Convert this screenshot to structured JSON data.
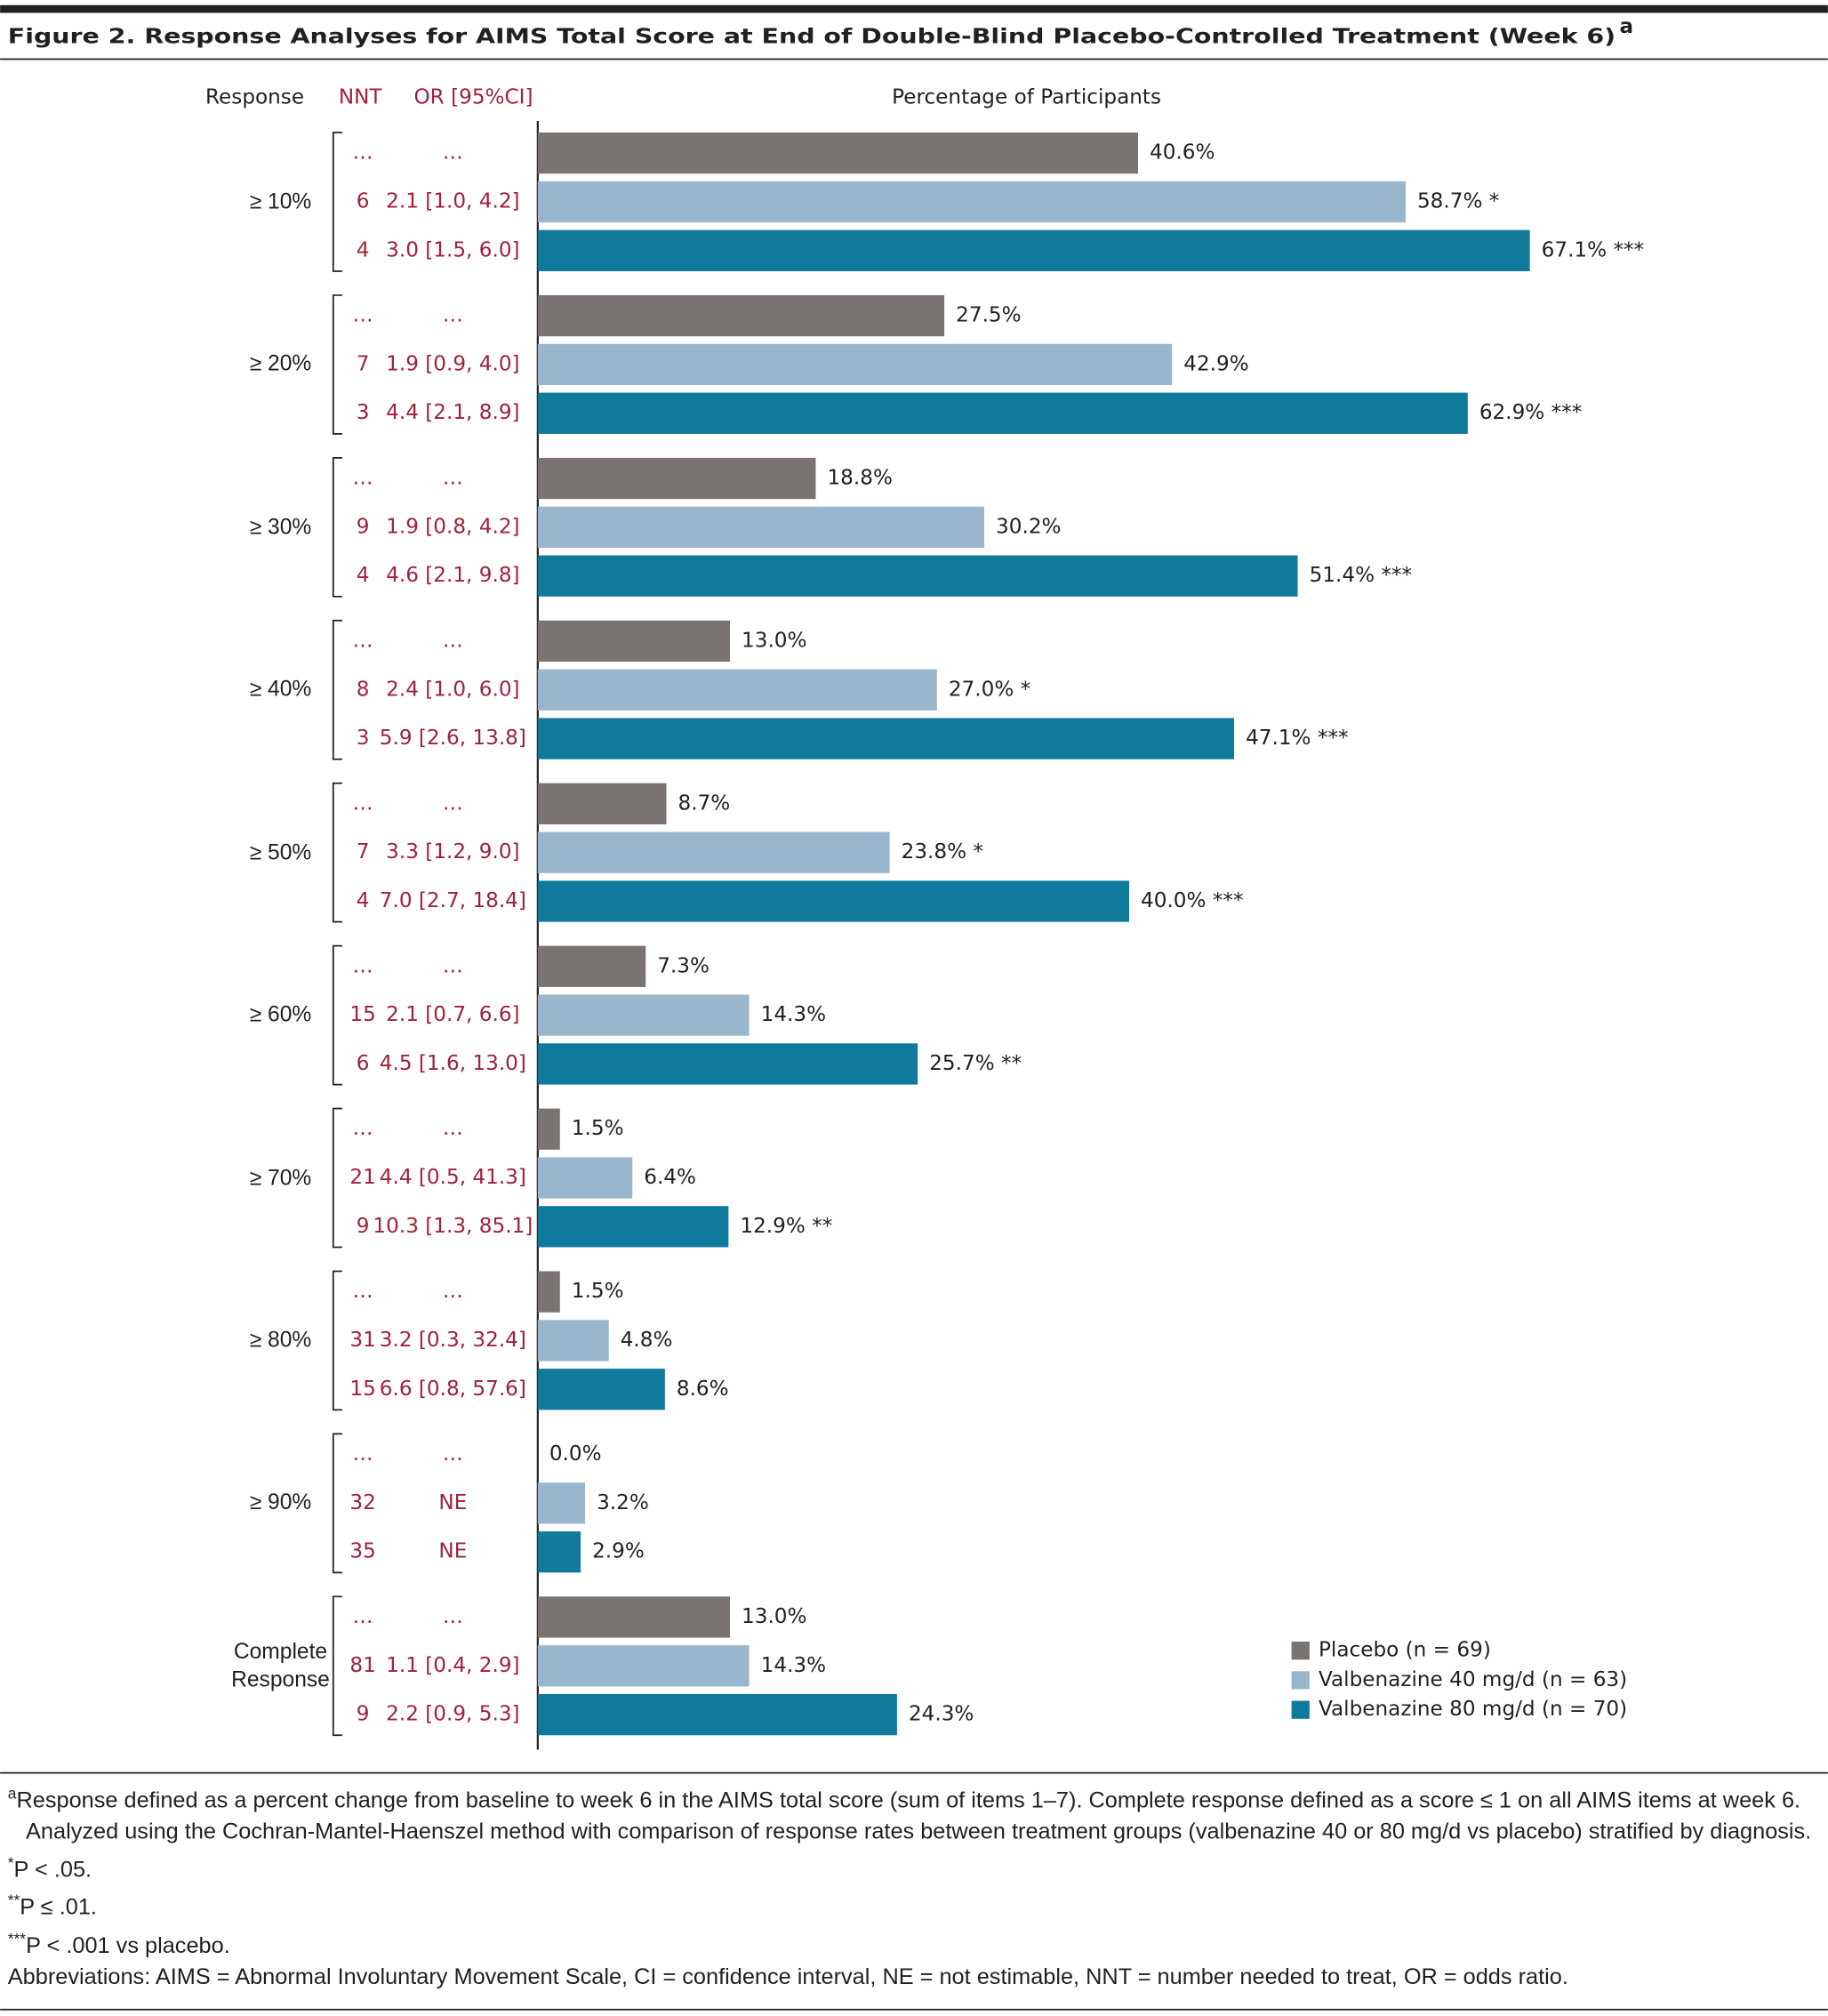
{
  "chart_data": {
    "type": "hbar",
    "title": "Figure 2. Response Analyses for AIMS Total Score at End of Double-Blind Placebo-Controlled Treatment (Week 6)",
    "title_mark": "a",
    "headers": {
      "response": "Response",
      "nnt": "NNT",
      "or": "OR [95%CI]",
      "xlabel": "Percentage of Participants"
    },
    "categories": [
      "≥ 10%",
      "≥ 20%",
      "≥ 30%",
      "≥ 40%",
      "≥ 50%",
      "≥ 60%",
      "≥ 70%",
      "≥ 80%",
      "≥ 90%",
      "Complete Response"
    ],
    "xlim": [
      0,
      87
    ],
    "legend": "bottom-right",
    "series": [
      {
        "name": "Placebo (n = 69)",
        "color": "#797372",
        "values": [
          40.6,
          27.5,
          18.8,
          13.0,
          8.7,
          7.3,
          1.5,
          1.5,
          0.0,
          13.0
        ],
        "value_labels": [
          "40.6%",
          "27.5%",
          "18.8%",
          "13.0%",
          "8.7%",
          "7.3%",
          "1.5%",
          "1.5%",
          "0.0%",
          "13.0%"
        ],
        "nnt": [
          "…",
          "…",
          "…",
          "…",
          "…",
          "…",
          "…",
          "…",
          "…",
          "…"
        ],
        "or": [
          "…",
          "…",
          "…",
          "…",
          "…",
          "…",
          "…",
          "…",
          "…",
          "…"
        ]
      },
      {
        "name": "Valbenazine 40 mg/d (n = 63)",
        "color": "#9ab6cc",
        "values": [
          58.7,
          42.9,
          30.2,
          27.0,
          23.8,
          14.3,
          6.4,
          4.8,
          3.2,
          14.3
        ],
        "value_labels": [
          "58.7% *",
          "42.9%",
          "30.2%",
          "27.0% *",
          "23.8% *",
          "14.3%",
          "6.4%",
          "4.8%",
          "3.2%",
          "14.3%"
        ],
        "nnt": [
          6,
          7,
          9,
          8,
          7,
          15,
          21,
          31,
          32,
          81
        ],
        "or": [
          "2.1 [1.0, 4.2]",
          "1.9 [0.9, 4.0]",
          "1.9 [0.8, 4.2]",
          "2.4 [1.0, 6.0]",
          "3.3 [1.2, 9.0]",
          "2.1 [0.7, 6.6]",
          "4.4 [0.5, 41.3]",
          "3.2 [0.3, 32.4]",
          "NE",
          "1.1 [0.4, 2.9]"
        ]
      },
      {
        "name": "Valbenazine 80 mg/d (n = 70)",
        "color": "#0f7a9c",
        "values": [
          67.1,
          62.9,
          51.4,
          47.1,
          40.0,
          25.7,
          12.9,
          8.6,
          2.9,
          24.3
        ],
        "value_labels": [
          "67.1% ***",
          "62.9% ***",
          "51.4% ***",
          "47.1% ***",
          "40.0% ***",
          "25.7% **",
          "12.9% **",
          "8.6%",
          "2.9%",
          "24.3%"
        ],
        "nnt": [
          4,
          3,
          4,
          3,
          4,
          6,
          9,
          15,
          35,
          9
        ],
        "or": [
          "3.0 [1.5, 6.0]",
          "4.4 [2.1, 8.9]",
          "4.6 [2.1, 9.8]",
          "5.9 [2.6, 13.8]",
          "7.0 [2.7, 18.4]",
          "4.5 [1.6, 13.0]",
          "10.3 [1.3, 85.1]",
          "6.6 [0.8, 57.6]",
          "NE",
          "2.2 [0.9, 5.3]"
        ]
      }
    ],
    "footnotes": [
      {
        "mark": "a",
        "text": "Response defined as a percent change from baseline to week 6 in the AIMS total score (sum of items 1–7). Complete response defined as a score ≤ 1 on all AIMS items at week 6. Analyzed using the Cochran-Mantel-Haenszel method with comparison of response rates between treatment groups (valbenazine 40 or 80 mg/d vs placebo) stratified by diagnosis."
      },
      {
        "mark": "*",
        "text": "P < .05."
      },
      {
        "mark": "**",
        "text": "P ≤ .01."
      },
      {
        "mark": "***",
        "text": "P < .001 vs placebo."
      },
      {
        "text": "Abbreviations: AIMS = Abnormal Involuntary Movement Scale, CI = confidence interval, NE = not estimable, NNT = number needed to treat, OR = odds ratio."
      }
    ]
  }
}
